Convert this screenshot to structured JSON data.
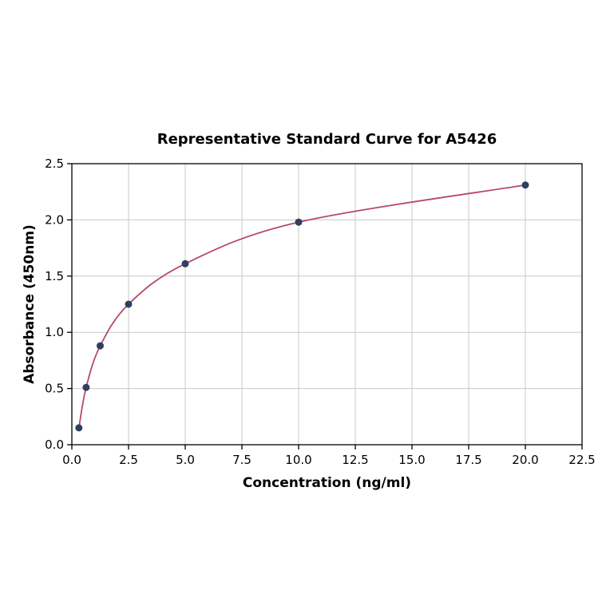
{
  "chart_data": {
    "type": "line",
    "title": "Representative Standard Curve for A5426",
    "xlabel": "Concentration (ng/ml)",
    "ylabel": "Absorbance (450nm)",
    "xlim": [
      0,
      22.5
    ],
    "ylim": [
      0,
      2.5
    ],
    "xticks": [
      0.0,
      2.5,
      5.0,
      7.5,
      10.0,
      12.5,
      15.0,
      17.5,
      20.0,
      22.5
    ],
    "yticks": [
      0.0,
      0.5,
      1.0,
      1.5,
      2.0,
      2.5
    ],
    "grid": true,
    "legend": "none",
    "points": [
      {
        "x": 0.31,
        "y": 0.15
      },
      {
        "x": 0.63,
        "y": 0.51
      },
      {
        "x": 1.25,
        "y": 0.88
      },
      {
        "x": 2.5,
        "y": 1.25
      },
      {
        "x": 5.0,
        "y": 1.61
      },
      {
        "x": 10.0,
        "y": 1.98
      },
      {
        "x": 20.0,
        "y": 2.31
      }
    ],
    "colors": {
      "line": "#b8496b",
      "marker": "#2f3f5f",
      "grid": "#c8c8c8",
      "axis": "#000000",
      "background": "#ffffff"
    }
  }
}
